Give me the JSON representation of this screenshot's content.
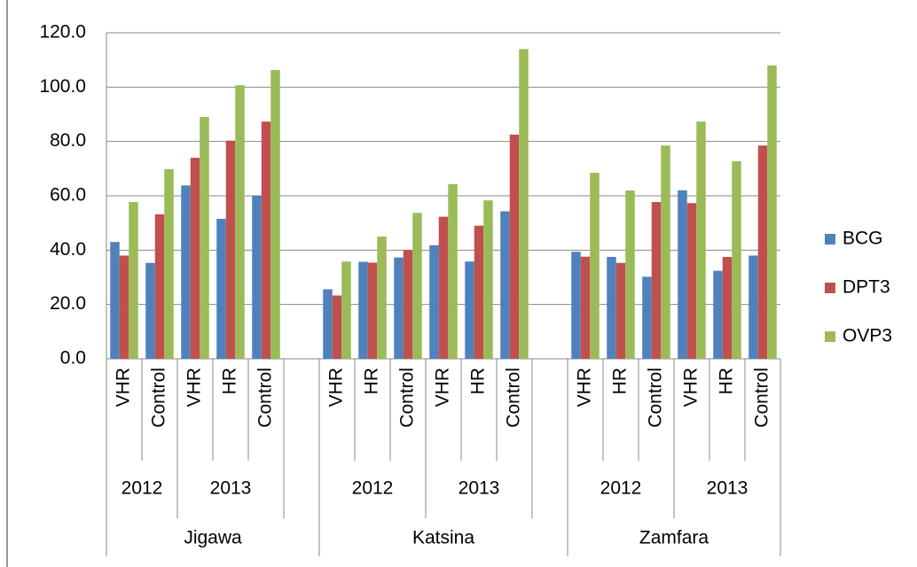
{
  "chart_data": {
    "type": "bar",
    "regions": [
      {
        "name": "Jigawa",
        "years": [
          {
            "name": "2012",
            "categories": [
              "VHR",
              "Control"
            ]
          },
          {
            "name": "2013",
            "categories": [
              "VHR",
              "HR",
              "Control"
            ]
          }
        ]
      },
      {
        "name": "Katsina",
        "years": [
          {
            "name": "2012",
            "categories": [
              "VHR",
              "HR",
              "Control"
            ]
          },
          {
            "name": "2013",
            "categories": [
              "VHR",
              "HR",
              "Control"
            ]
          }
        ]
      },
      {
        "name": "Zamfara",
        "years": [
          {
            "name": "2012",
            "categories": [
              "VHR",
              "HR",
              "Control"
            ]
          },
          {
            "name": "2013",
            "categories": [
              "VHR",
              "HR",
              "Control"
            ]
          }
        ]
      }
    ],
    "series": [
      {
        "name": "BCG",
        "color": "#4f81bd",
        "values": [
          43.0,
          35.3,
          63.8,
          51.5,
          60.0,
          25.6,
          35.7,
          37.3,
          41.8,
          35.8,
          54.3,
          39.4,
          37.5,
          30.2,
          62.0,
          32.4,
          38.0
        ]
      },
      {
        "name": "DPT3",
        "color": "#c0504d",
        "values": [
          38.0,
          53.2,
          74.0,
          80.3,
          87.3,
          23.3,
          35.4,
          40.0,
          52.3,
          49.0,
          82.5,
          37.6,
          35.3,
          57.7,
          57.3,
          37.5,
          78.5
        ]
      },
      {
        "name": "OVP3",
        "color": "#9bbb59",
        "values": [
          57.7,
          69.8,
          89.0,
          100.7,
          106.3,
          35.8,
          45.0,
          53.7,
          64.3,
          58.3,
          114.0,
          68.5,
          62.0,
          78.5,
          87.3,
          72.7,
          108.0
        ]
      }
    ],
    "ylim": [
      0,
      120
    ],
    "yticks": [
      {
        "value": 0,
        "label": "0.0"
      },
      {
        "value": 20,
        "label": "20.0"
      },
      {
        "value": 40,
        "label": "40.0"
      },
      {
        "value": 60,
        "label": "60.0"
      },
      {
        "value": 80,
        "label": "80.0"
      },
      {
        "value": 100,
        "label": "100.0"
      },
      {
        "value": 120,
        "label": "120.0"
      }
    ],
    "grid": true,
    "legend": "right"
  }
}
